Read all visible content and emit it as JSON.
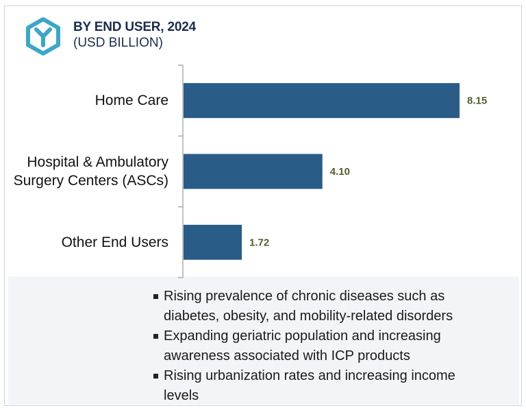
{
  "header": {
    "title": "BY END USER, 2024",
    "subtitle": "(USD BILLION)",
    "logo_icon": "hexagon-y-logo",
    "logo_color": "#3aa7c9"
  },
  "chart_data": {
    "type": "bar",
    "orientation": "horizontal",
    "categories": [
      "Home Care",
      "Hospital & Ambulatory Surgery Centers (ASCs)",
      "Other End Users"
    ],
    "category_lines": [
      [
        "Home Care"
      ],
      [
        "Hospital & Ambulatory",
        "Surgery Centers (ASCs)"
      ],
      [
        "Other End Users"
      ]
    ],
    "values": [
      8.15,
      4.1,
      1.72
    ],
    "data_labels": [
      "8.15",
      "4.10",
      "1.72"
    ],
    "xlim": [
      0,
      8.15
    ],
    "grid": false,
    "bar_color": "#2a5c88",
    "label_color": "#4f5f2a"
  },
  "notes": {
    "bullets": [
      "Rising prevalence of chronic diseases such as diabetes, obesity, and mobility-related disorders",
      "Expanding geriatric population and increasing awareness associated with ICP products",
      "Rising urbanization rates and increasing income levels"
    ]
  }
}
